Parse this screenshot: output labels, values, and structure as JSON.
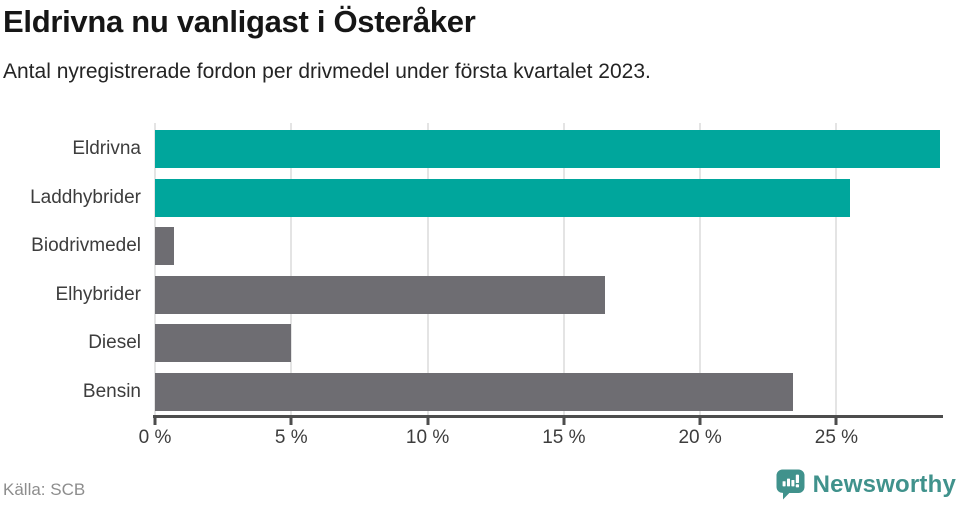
{
  "header": {
    "title": "Eldrivna nu vanligast i Österåker",
    "subtitle": "Antal nyregistrerade fordon per drivmedel under första kvartalet 2023."
  },
  "chart_data": {
    "type": "bar",
    "orientation": "horizontal",
    "title": "Eldrivna nu vanligast i Österåker",
    "subtitle": "Antal nyregistrerade fordon per drivmedel under första kvartalet 2023.",
    "categories": [
      "Eldrivna",
      "Laddhybrider",
      "Biodrivmedel",
      "Elhybrider",
      "Diesel",
      "Bensin"
    ],
    "values": [
      28.8,
      25.5,
      0.7,
      16.5,
      5.0,
      23.4
    ],
    "unit": "%",
    "bar_colors": [
      "#00a69c",
      "#00a69c",
      "#6e6d72",
      "#6e6d72",
      "#6e6d72",
      "#6e6d72"
    ],
    "highlight_color": "#00a69c",
    "neutral_color": "#6e6d72",
    "xlabel": "",
    "ylabel": "",
    "xlim": [
      0,
      28.8
    ],
    "xticks": [
      0,
      5,
      10,
      15,
      20,
      25
    ],
    "xtick_labels": [
      "0 %",
      "5 %",
      "10 %",
      "15 %",
      "20 %",
      "25 %"
    ],
    "grid": true,
    "gridline_color": "#e4e4e4",
    "axis_color": "#4d4d4d",
    "legend": "none"
  },
  "footer": {
    "source": "Källa: SCB",
    "brand": "Newsworthy",
    "brand_color": "#40928c"
  }
}
